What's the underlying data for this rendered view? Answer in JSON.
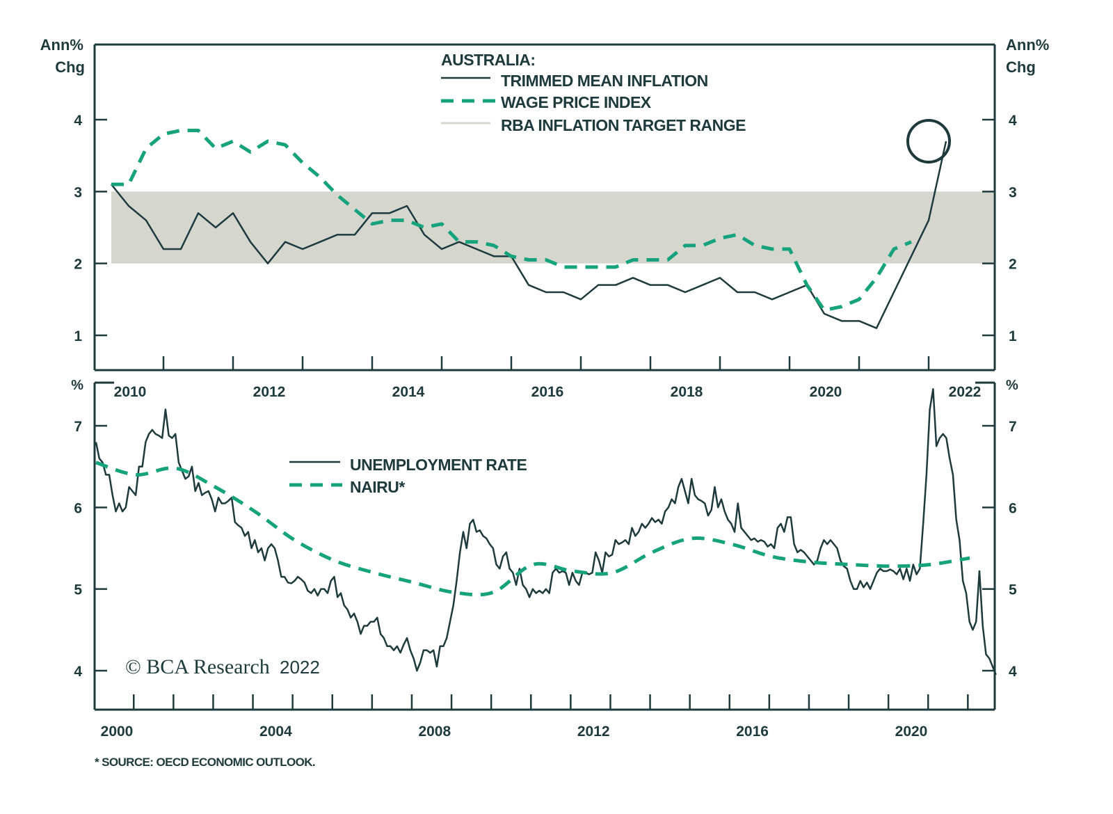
{
  "chart_data": [
    {
      "type": "line",
      "panel": "top",
      "title": "AUSTRALIA:",
      "ylabel_left": "Ann% Chg",
      "ylabel_right": "Ann% Chg",
      "ylim": [
        0.5,
        5.0
      ],
      "yticks": [
        1,
        2,
        3,
        4
      ],
      "xlim": [
        2009.75,
        2022.5
      ],
      "xtick_labels": [
        "2010",
        "2012",
        "2014",
        "2016",
        "2018",
        "2020",
        "2022"
      ],
      "xtick_values": [
        2010,
        2012,
        2014,
        2016,
        2018,
        2020,
        2022
      ],
      "grid": false,
      "legend_position": "top-center",
      "bands": [
        {
          "name": "RBA INFLATION TARGET RANGE",
          "from": 2,
          "to": 3,
          "x_start": 2010.0,
          "color": "#d5d7cf"
        }
      ],
      "series": [
        {
          "name": "TRIMMED MEAN INFLATION",
          "style": "solid",
          "color": "#1e3a3c",
          "x_start": 2010.0,
          "step": 0.25,
          "values": [
            3.1,
            2.8,
            2.6,
            2.2,
            2.2,
            2.7,
            2.5,
            2.7,
            2.3,
            2.0,
            2.3,
            2.2,
            2.3,
            2.4,
            2.4,
            2.7,
            2.7,
            2.8,
            2.4,
            2.2,
            2.3,
            2.2,
            2.1,
            2.1,
            1.7,
            1.6,
            1.6,
            1.5,
            1.7,
            1.7,
            1.8,
            1.7,
            1.7,
            1.6,
            1.7,
            1.8,
            1.6,
            1.6,
            1.5,
            1.6,
            1.7,
            1.3,
            1.2,
            1.2,
            1.1,
            1.6,
            2.1,
            2.6,
            3.7
          ]
        },
        {
          "name": "WAGE PRICE INDEX",
          "style": "dashed",
          "color": "#16a37b",
          "x_start": 2010.0,
          "step": 0.25,
          "values": [
            3.1,
            3.1,
            3.6,
            3.8,
            3.85,
            3.85,
            3.6,
            3.7,
            3.55,
            3.7,
            3.65,
            3.4,
            3.2,
            2.95,
            2.75,
            2.55,
            2.6,
            2.6,
            2.5,
            2.55,
            2.3,
            2.3,
            2.25,
            2.1,
            2.05,
            2.05,
            1.95,
            1.95,
            1.95,
            1.95,
            2.05,
            2.05,
            2.05,
            2.25,
            2.25,
            2.35,
            2.4,
            2.25,
            2.2,
            2.2,
            1.7,
            1.35,
            1.4,
            1.5,
            1.8,
            2.2,
            2.3
          ]
        }
      ],
      "annotations": [
        {
          "type": "circle",
          "x": 2021.75,
          "y": 3.7,
          "label": "latest reading highlighted"
        }
      ]
    },
    {
      "type": "line",
      "panel": "bottom",
      "ylabel_left": "%",
      "ylabel_right": "%",
      "ylim": [
        3.5,
        7.5
      ],
      "yticks": [
        4,
        5,
        6,
        7
      ],
      "xlim": [
        1999.5,
        2022.2
      ],
      "xtick_labels": [
        "2000",
        "2004",
        "2008",
        "2012",
        "2016",
        "2020"
      ],
      "xtick_values": [
        2000,
        2004,
        2008,
        2012,
        2016,
        2020
      ],
      "grid": false,
      "legend_position": "top-center",
      "series": [
        {
          "name": "UNEMPLOYMENT RATE",
          "style": "solid",
          "color": "#1e3a3c",
          "x_start": 2000.0,
          "step": 0.0833,
          "values": [
            6.8,
            6.6,
            6.55,
            6.4,
            6.4,
            6.15,
            5.95,
            6.05,
            5.95,
            6.0,
            6.25,
            6.2,
            6.15,
            6.5,
            6.5,
            6.8,
            6.9,
            6.95,
            6.9,
            6.88,
            6.85,
            7.2,
            6.88,
            6.85,
            6.9,
            6.55,
            6.45,
            6.35,
            6.38,
            6.5,
            6.2,
            6.3,
            6.15,
            6.18,
            6.2,
            6.1,
            5.95,
            6.12,
            6.05,
            6.05,
            6.08,
            6.12,
            5.82,
            5.78,
            5.75,
            5.65,
            5.7,
            5.5,
            5.6,
            5.45,
            5.5,
            5.35,
            5.5,
            5.55,
            5.5,
            5.35,
            5.15,
            5.15,
            5.08,
            5.07,
            5.1,
            5.15,
            5.12,
            5.08,
            4.98,
            4.95,
            5.0,
            4.92,
            5.0,
            5.0,
            4.95,
            5.1,
            5.15,
            4.9,
            4.95,
            4.8,
            4.75,
            4.65,
            4.7,
            4.6,
            4.45,
            4.55,
            4.55,
            4.6,
            4.6,
            4.65,
            4.45,
            4.4,
            4.3,
            4.3,
            4.25,
            4.3,
            4.22,
            4.32,
            4.4,
            4.25,
            4.15,
            4.0,
            4.1,
            4.25,
            4.25,
            4.22,
            4.25,
            4.05,
            4.3,
            4.3,
            4.4,
            4.6,
            4.8,
            5.1,
            5.45,
            5.7,
            5.5,
            5.8,
            5.85,
            5.7,
            5.72,
            5.65,
            5.62,
            5.55,
            5.5,
            5.3,
            5.25,
            5.4,
            5.45,
            5.25,
            5.2,
            5.05,
            5.25,
            5.05,
            5.0,
            4.9,
            5.0,
            4.95,
            4.98,
            4.95,
            5.0,
            4.95,
            5.2,
            5.25,
            5.2,
            5.22,
            5.2,
            5.05,
            5.2,
            5.1,
            5.05,
            5.2,
            5.2,
            5.18,
            5.2,
            5.45,
            5.35,
            5.2,
            5.45,
            5.4,
            5.42,
            5.6,
            5.55,
            5.57,
            5.6,
            5.55,
            5.75,
            5.65,
            5.7,
            5.8,
            5.75,
            5.8,
            5.87,
            5.82,
            5.85,
            5.8,
            5.95,
            6.0,
            6.1,
            6.05,
            6.25,
            6.35,
            6.2,
            6.05,
            6.35,
            6.15,
            6.1,
            6.08,
            6.05,
            5.9,
            5.97,
            6.25,
            6.0,
            6.1,
            5.95,
            5.85,
            5.8,
            5.7,
            6.05,
            5.75,
            5.7,
            5.65,
            5.6,
            5.62,
            5.58,
            5.6,
            5.58,
            5.52,
            5.55,
            5.5,
            5.75,
            5.8,
            5.7,
            5.88,
            5.88,
            5.55,
            5.45,
            5.48,
            5.45,
            5.4,
            5.35,
            5.3,
            5.35,
            5.5,
            5.6,
            5.55,
            5.6,
            5.55,
            5.5,
            5.35,
            5.28,
            5.25,
            5.1,
            5.0,
            5.0,
            5.1,
            5.02,
            5.08,
            5.0,
            5.1,
            5.2,
            5.25,
            5.22,
            5.22,
            5.24,
            5.22,
            5.18,
            5.25,
            5.12,
            5.25,
            5.1,
            5.3,
            5.18,
            5.25,
            5.8,
            6.4,
            7.2,
            7.45,
            6.75,
            6.85,
            6.9,
            6.85,
            6.6,
            6.4,
            5.85,
            5.6,
            5.1,
            4.95,
            4.6,
            4.5,
            4.6,
            5.22,
            4.55,
            4.2,
            4.15,
            4.05,
            3.95
          ]
        },
        {
          "name": "NAIRU*",
          "style": "dashed",
          "color": "#16a37b",
          "x_points": [
            2000.0,
            2001.0,
            2002.0,
            2003.0,
            2004.0,
            2005.0,
            2006.0,
            2007.0,
            2008.0,
            2009.0,
            2010.0,
            2011.0,
            2012.0,
            2013.0,
            2014.0,
            2015.0,
            2016.0,
            2017.0,
            2018.0,
            2019.0,
            2020.0,
            2021.0,
            2022.0
          ],
          "values": [
            6.55,
            6.4,
            6.48,
            6.25,
            5.95,
            5.6,
            5.35,
            5.2,
            5.08,
            4.96,
            4.96,
            5.3,
            5.22,
            5.2,
            5.45,
            5.62,
            5.55,
            5.4,
            5.33,
            5.3,
            5.28,
            5.3,
            5.38
          ]
        }
      ],
      "annotations": []
    }
  ],
  "legend_top": {
    "heading": "AUSTRALIA:",
    "items": [
      "TRIMMED MEAN INFLATION",
      "WAGE PRICE INDEX",
      "RBA INFLATION TARGET RANGE"
    ]
  },
  "legend_bottom": {
    "items": [
      "UNEMPLOYMENT RATE",
      "NAIRU*"
    ]
  },
  "axes": {
    "top_left_unit_line1": "Ann%",
    "top_left_unit_line2": "Chg",
    "top_right_unit_line1": "Ann%",
    "top_right_unit_line2": "Chg",
    "bottom_left_unit": "%",
    "bottom_right_unit": "%"
  },
  "watermark": {
    "brand": "© BCA Research",
    "year": "2022"
  },
  "footnote": "* SOURCE: OECD ECONOMIC OUTLOOK.",
  "colors": {
    "ink": "#1e3a3c",
    "accent": "#16a37b",
    "band": "#d5d7cf"
  }
}
